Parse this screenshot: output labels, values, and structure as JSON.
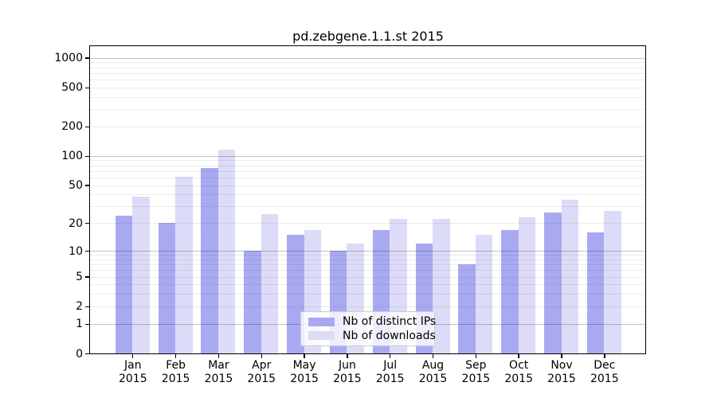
{
  "chart_data": {
    "type": "bar",
    "title": "pd.zebgene.1.1.st 2015",
    "categories": [
      "Jan",
      "Feb",
      "Mar",
      "Apr",
      "May",
      "Jun",
      "Jul",
      "Aug",
      "Sep",
      "Oct",
      "Nov",
      "Dec"
    ],
    "x_tick_second_line": "2015",
    "series": [
      {
        "name": "Nb of distinct IPs",
        "color": "#a9a9f2",
        "values": [
          24,
          20,
          75,
          10,
          15,
          10,
          17,
          12,
          7,
          17,
          26,
          16
        ]
      },
      {
        "name": "Nb of downloads",
        "color": "#dcdcf8",
        "values": [
          38,
          61,
          117,
          25,
          17,
          12,
          22,
          22,
          15,
          23,
          35,
          27
        ]
      }
    ],
    "ylabel": "",
    "xlabel": "",
    "yscale": "log10(value+1)",
    "yticks": [
      0,
      1,
      2,
      5,
      10,
      20,
      50,
      100,
      200,
      500,
      1000
    ],
    "ylim": [
      0,
      1312
    ],
    "grid": true,
    "grid_major_at": [
      1,
      10,
      100,
      1000
    ],
    "grid_minor": "2-9 per decade",
    "legend_position": "lower center"
  }
}
